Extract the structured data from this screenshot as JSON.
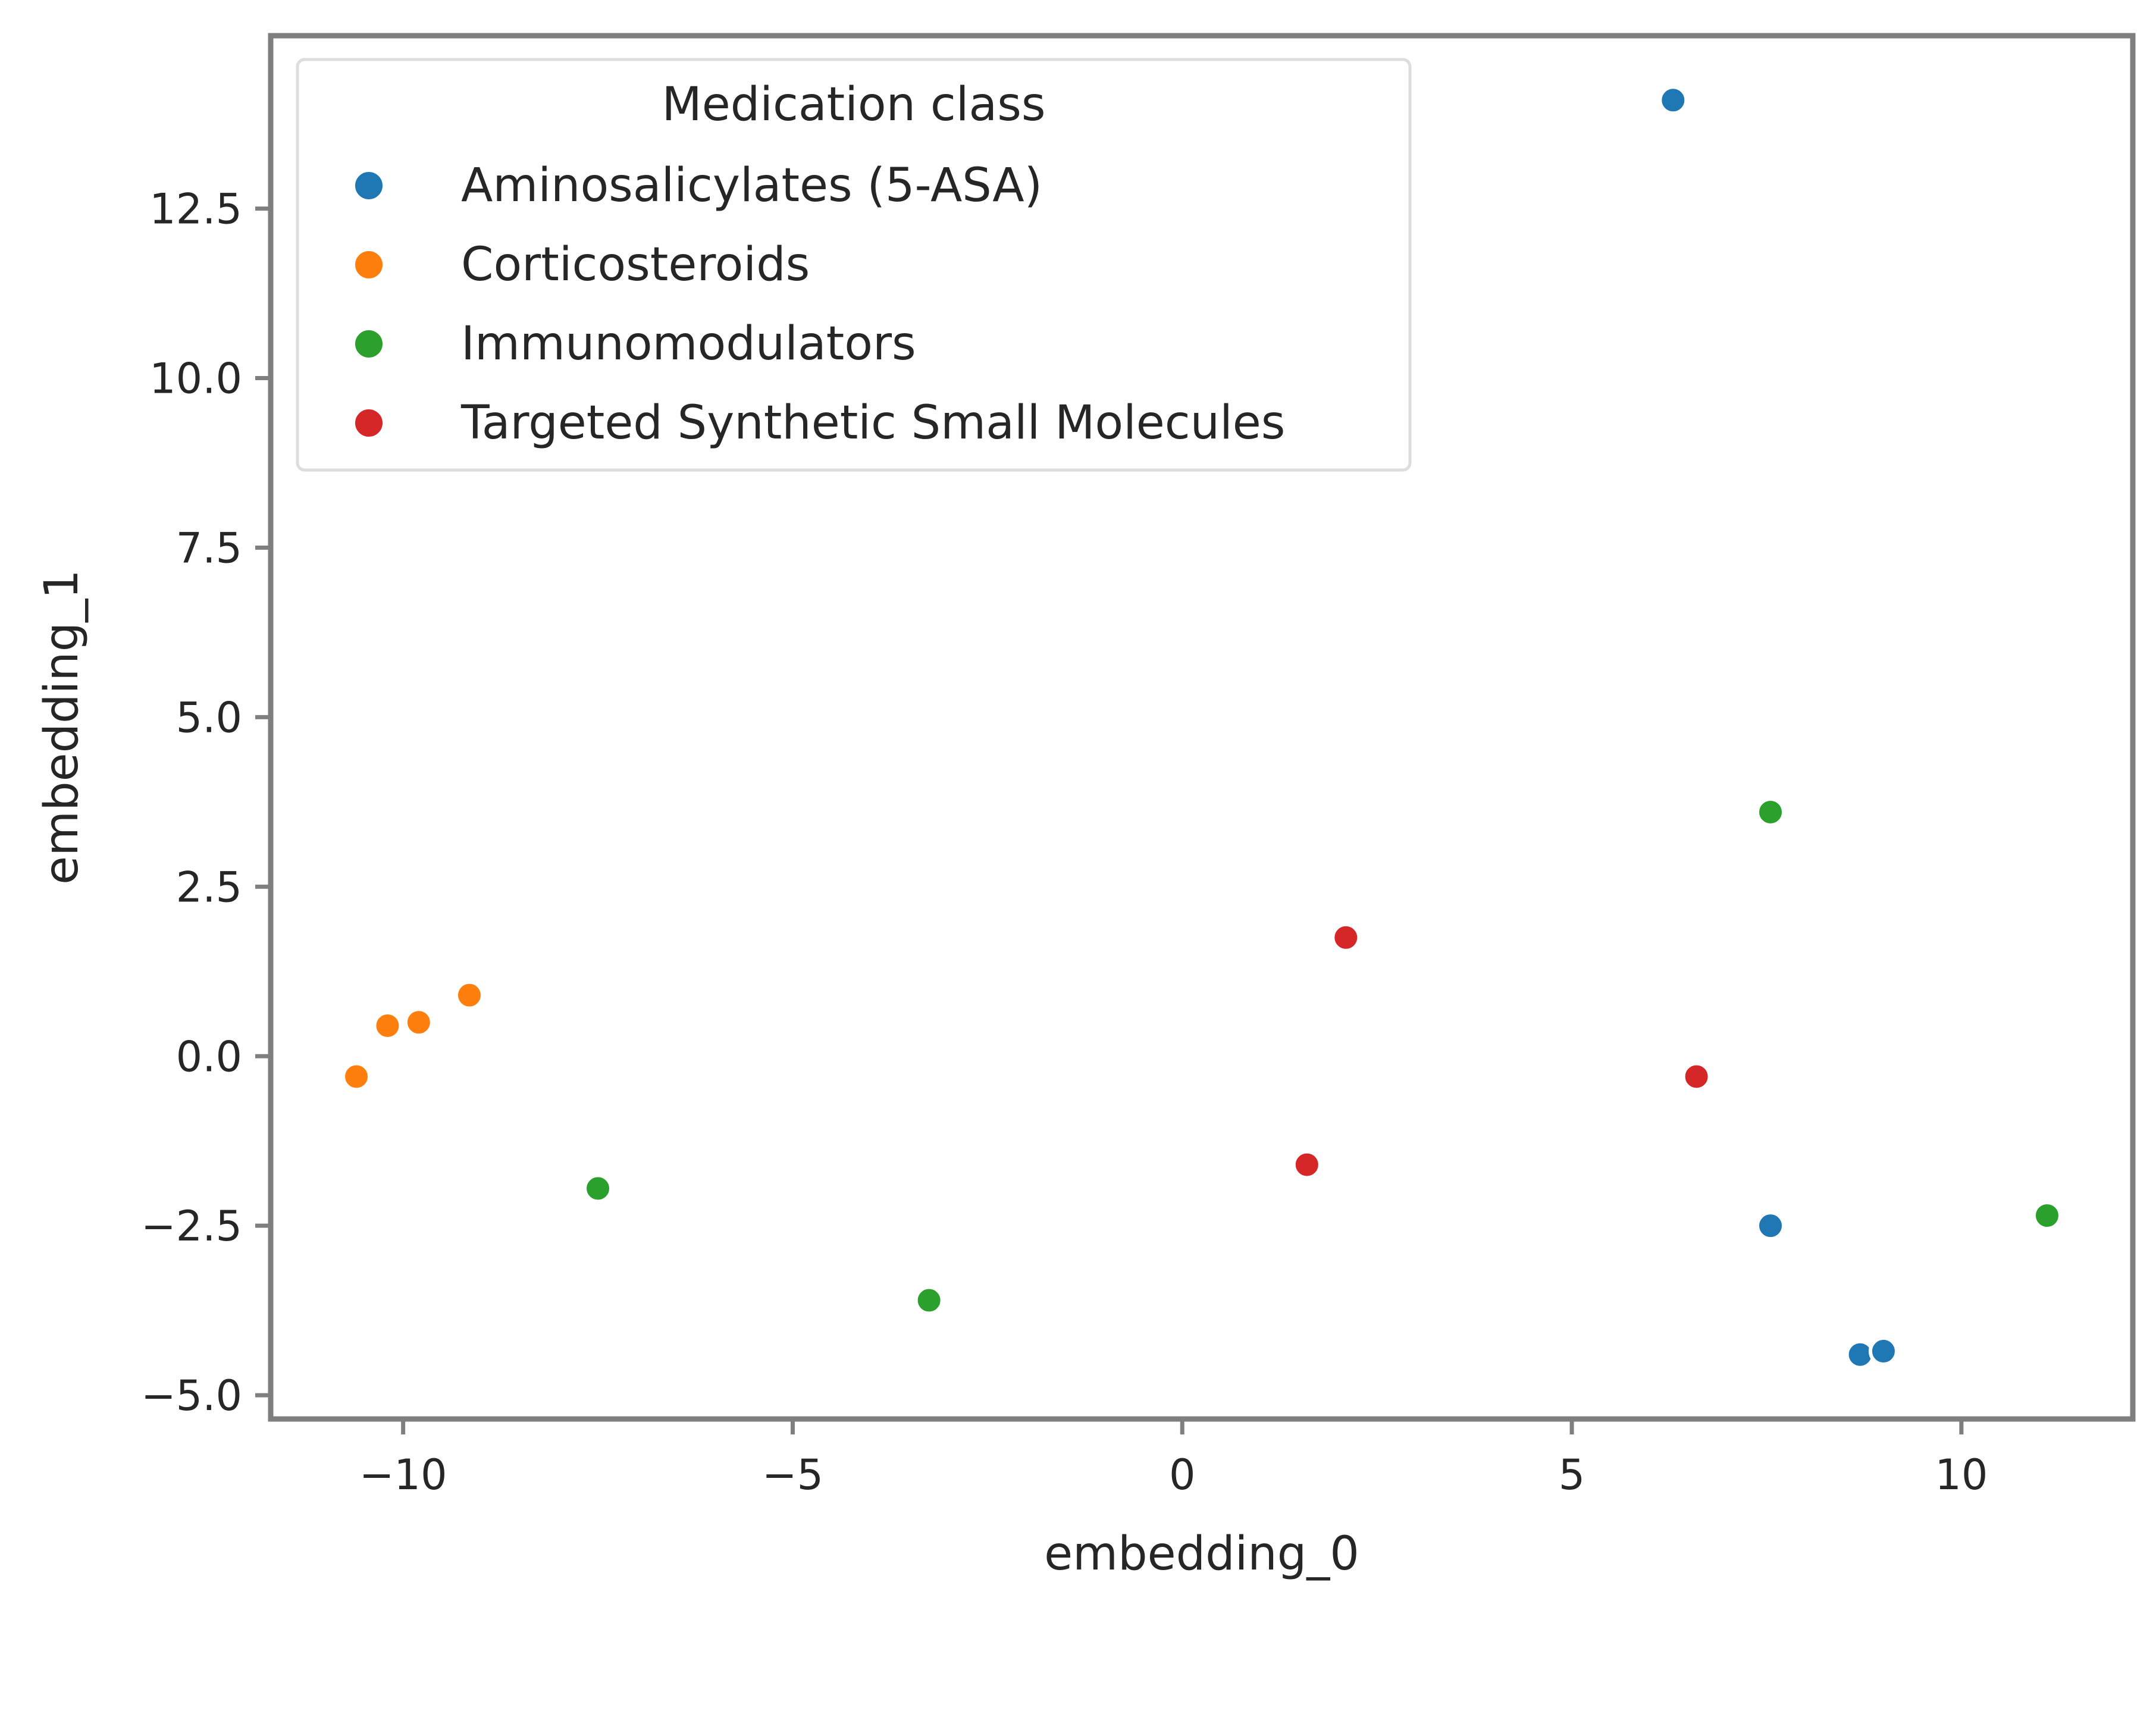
{
  "chart_data": {
    "type": "scatter",
    "title": "",
    "xlabel": "embedding_0",
    "ylabel": "embedding_1",
    "xlim": [
      -11.7,
      12.2
    ],
    "ylim": [
      -5.35,
      15.05
    ],
    "xticks": [
      -10,
      -5,
      0,
      5,
      10
    ],
    "xtick_labels": [
      "−10",
      "−5",
      "0",
      "5",
      "10"
    ],
    "yticks": [
      -5.0,
      -2.5,
      0.0,
      2.5,
      5.0,
      7.5,
      10.0,
      12.5
    ],
    "ytick_labels": [
      "−5.0",
      "−2.5",
      "0.0",
      "2.5",
      "5.0",
      "7.5",
      "10.0",
      "12.5"
    ],
    "grid": false,
    "legend": {
      "title": "Medication class",
      "placement": "top-left"
    },
    "series": [
      {
        "name": "Aminosalicylates (5-ASA)",
        "color": "#1f77b4",
        "points": [
          {
            "x": 6.3,
            "y": 14.1
          },
          {
            "x": 7.55,
            "y": -2.5
          },
          {
            "x": 8.7,
            "y": -4.4
          },
          {
            "x": 9.0,
            "y": -4.35
          }
        ]
      },
      {
        "name": "Corticosteroids",
        "color": "#ff7f0e",
        "points": [
          {
            "x": -10.6,
            "y": -0.3
          },
          {
            "x": -10.2,
            "y": 0.45
          },
          {
            "x": -9.8,
            "y": 0.5
          },
          {
            "x": -9.15,
            "y": 0.9
          }
        ]
      },
      {
        "name": "Immunomodulators",
        "color": "#2ca02c",
        "points": [
          {
            "x": -7.5,
            "y": -1.95
          },
          {
            "x": -3.25,
            "y": -3.6
          },
          {
            "x": 7.55,
            "y": 3.6
          },
          {
            "x": 11.1,
            "y": -2.35
          }
        ]
      },
      {
        "name": "Targeted Synthetic Small Molecules",
        "color": "#d62728",
        "points": [
          {
            "x": 2.1,
            "y": 1.75
          },
          {
            "x": 1.6,
            "y": -1.6
          },
          {
            "x": 6.6,
            "y": -0.3
          }
        ]
      }
    ]
  }
}
